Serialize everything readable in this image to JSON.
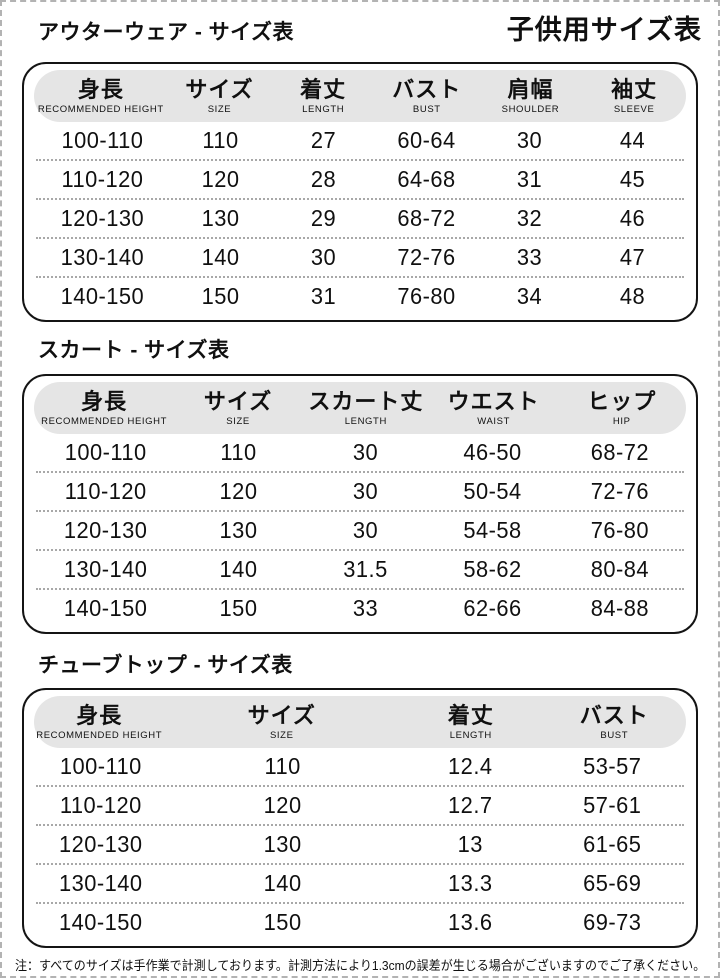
{
  "page": {
    "main_title": "子供用サイズ表",
    "note": "注：すべてのサイズは手作業で計測しております。計測方法により1.3cmの誤差が生じる場合がございますのでご了承ください。"
  },
  "colors": {
    "table_border": "#141414",
    "header_pill_bg": "#e5e5e5",
    "row_separator": "#a8a8a8",
    "page_border": "#b3b3b3",
    "text": "#101010"
  },
  "tables": [
    {
      "title": "アウターウェア - サイズ表",
      "columns": [
        {
          "jp": "身長",
          "en": "RECOMMENDED HEIGHT"
        },
        {
          "jp": "サイズ",
          "en": "SIZE"
        },
        {
          "jp": "着丈",
          "en": "LENGTH"
        },
        {
          "jp": "バスト",
          "en": "BUST"
        },
        {
          "jp": "肩幅",
          "en": "SHOULDER"
        },
        {
          "jp": "袖丈",
          "en": "SLEEVE"
        }
      ],
      "rows": [
        [
          "100-110",
          "110",
          "27",
          "60-64",
          "30",
          "44"
        ],
        [
          "110-120",
          "120",
          "28",
          "64-68",
          "31",
          "45"
        ],
        [
          "120-130",
          "130",
          "29",
          "68-72",
          "32",
          "46"
        ],
        [
          "130-140",
          "140",
          "30",
          "72-76",
          "33",
          "47"
        ],
        [
          "140-150",
          "150",
          "31",
          "76-80",
          "34",
          "48"
        ]
      ]
    },
    {
      "title": "スカート - サイズ表",
      "columns": [
        {
          "jp": "身長",
          "en": "RECOMMENDED HEIGHT"
        },
        {
          "jp": "サイズ",
          "en": "SIZE"
        },
        {
          "jp": "スカート丈",
          "en": "LENGTH"
        },
        {
          "jp": "ウエスト",
          "en": "WAIST"
        },
        {
          "jp": "ヒップ",
          "en": "HIP"
        }
      ],
      "rows": [
        [
          "100-110",
          "110",
          "30",
          "46-50",
          "68-72"
        ],
        [
          "110-120",
          "120",
          "30",
          "50-54",
          "72-76"
        ],
        [
          "120-130",
          "130",
          "30",
          "54-58",
          "76-80"
        ],
        [
          "130-140",
          "140",
          "31.5",
          "58-62",
          "80-84"
        ],
        [
          "140-150",
          "150",
          "33",
          "62-66",
          "84-88"
        ]
      ]
    },
    {
      "title": "チューブトップ - サイズ表",
      "columns": [
        {
          "jp": "身長",
          "en": "RECOMMENDED HEIGHT"
        },
        {
          "jp": "サイズ",
          "en": "SIZE"
        },
        {
          "jp": "着丈",
          "en": "LENGTH"
        },
        {
          "jp": "バスト",
          "en": "BUST"
        }
      ],
      "rows": [
        [
          "100-110",
          "110",
          "12.4",
          "53-57"
        ],
        [
          "110-120",
          "120",
          "12.7",
          "57-61"
        ],
        [
          "120-130",
          "130",
          "13",
          "61-65"
        ],
        [
          "130-140",
          "140",
          "13.3",
          "65-69"
        ],
        [
          "140-150",
          "150",
          "13.6",
          "69-73"
        ]
      ]
    }
  ]
}
